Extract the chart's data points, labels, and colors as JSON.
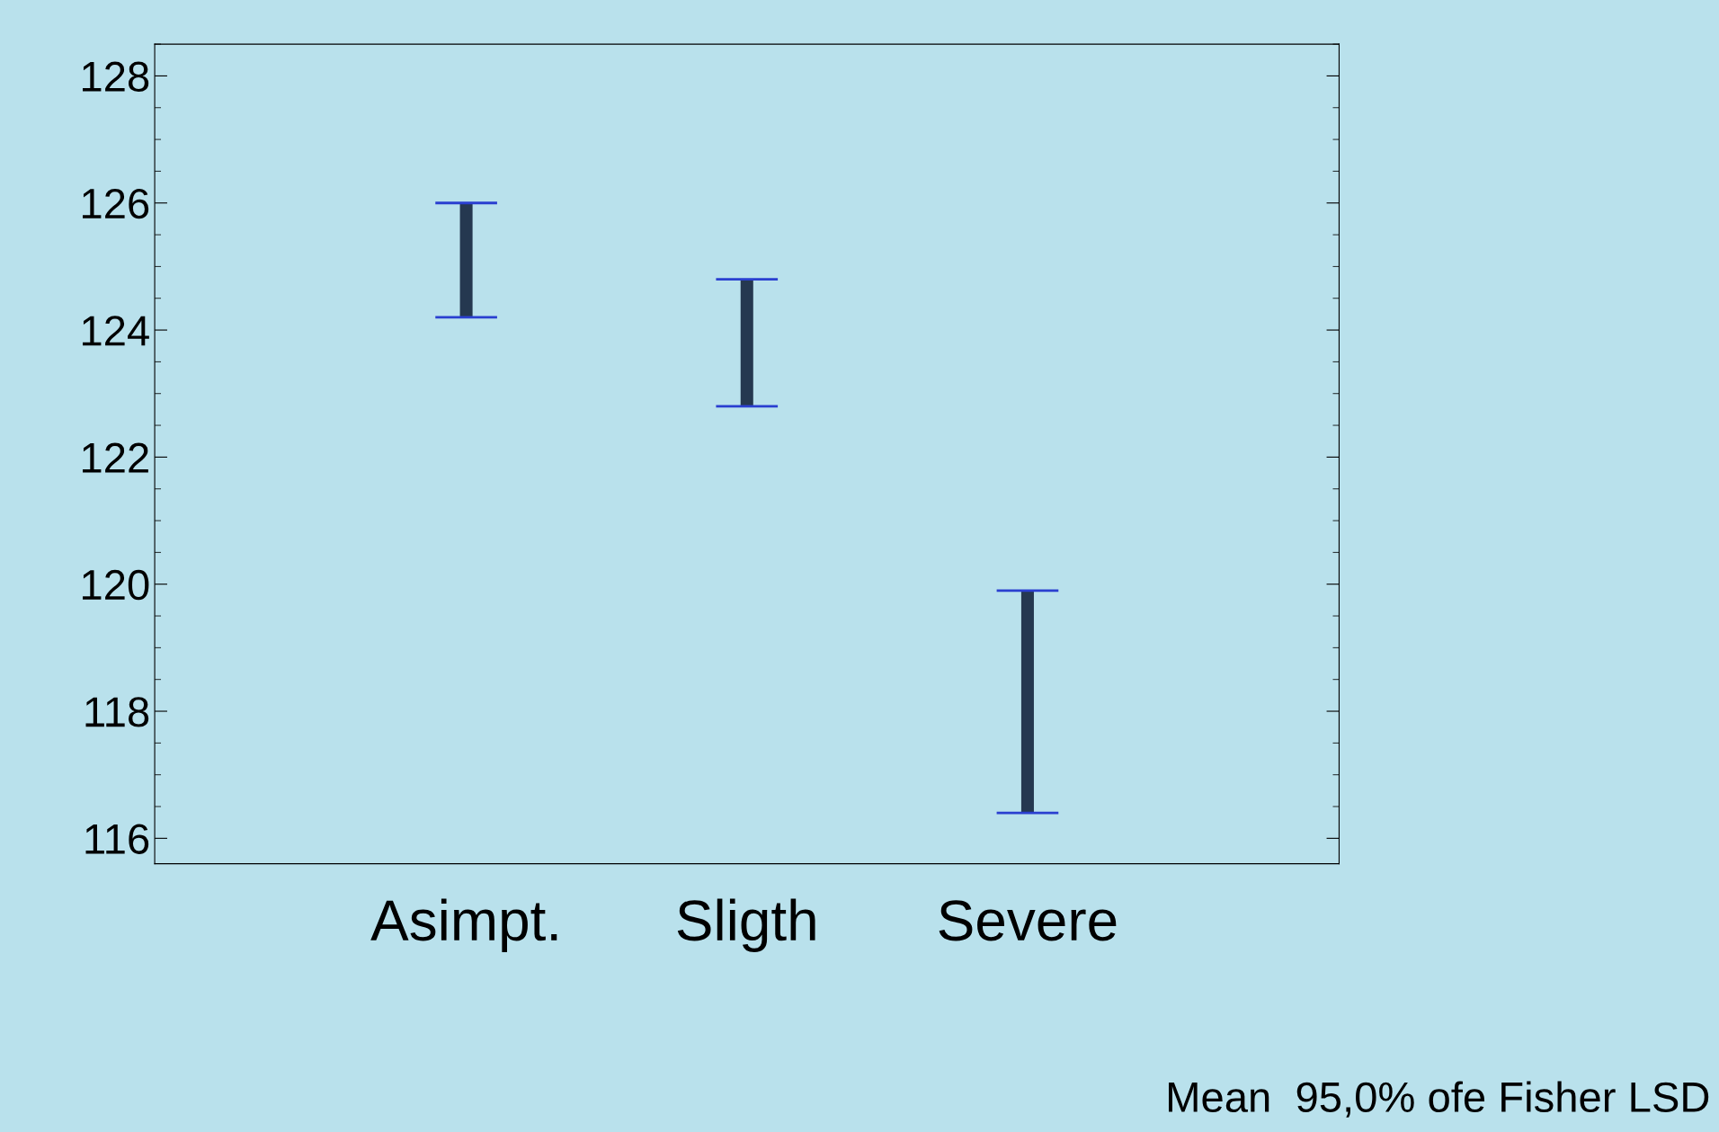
{
  "chart_data": {
    "type": "bar",
    "categories": [
      "Asimpt.",
      "Sligth",
      "Severe"
    ],
    "base": [
      124.2,
      122.8,
      116.4
    ],
    "values": [
      1.8,
      2.0,
      3.5
    ],
    "color": "#253850",
    "ylim": [
      115.6,
      128.5
    ],
    "yticks": [
      116,
      118,
      120,
      122,
      124,
      126,
      128
    ],
    "grid": false,
    "annotations": [
      "Mean  95,0% ofe Fisher LSD"
    ]
  }
}
